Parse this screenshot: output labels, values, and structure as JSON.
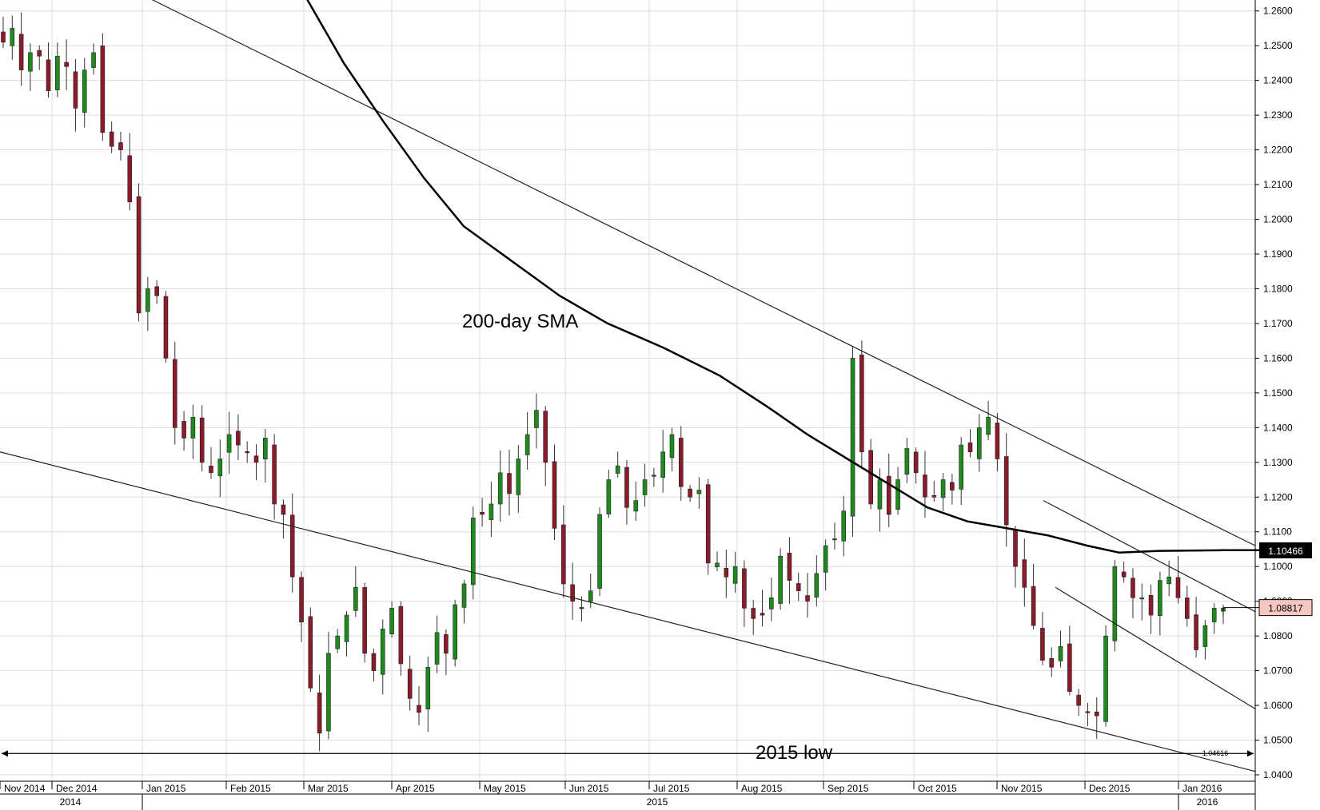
{
  "chart_data": {
    "type": "candlestick",
    "title": "",
    "xlabel": "",
    "ylabel": "",
    "ylim": [
      1.04,
      1.265
    ],
    "y_ticks": [
      "1.2600",
      "1.2500",
      "1.2400",
      "1.2300",
      "1.2200",
      "1.2100",
      "1.2000",
      "1.1900",
      "1.1800",
      "1.1700",
      "1.1600",
      "1.1500",
      "1.1400",
      "1.1300",
      "1.1200",
      "1.1100",
      "1.1000",
      "1.0900",
      "1.0800",
      "1.0700",
      "1.0600",
      "1.0500",
      "1.0400"
    ],
    "y_tick_values": [
      1.26,
      1.25,
      1.24,
      1.23,
      1.22,
      1.21,
      1.2,
      1.19,
      1.18,
      1.17,
      1.16,
      1.15,
      1.14,
      1.13,
      1.12,
      1.11,
      1.1,
      1.09,
      1.08,
      1.07,
      1.06,
      1.05,
      1.04
    ],
    "month_labels": [
      "Nov 2014",
      "Dec 2014",
      "Jan 2015",
      "Feb 2015",
      "Mar 2015",
      "Apr 2015",
      "May 2015",
      "Jun 2015",
      "Jul 2015",
      "Aug 2015",
      "Sep 2015",
      "Oct 2015",
      "Nov 2015",
      "Dec 2015",
      "Jan 2016"
    ],
    "year_labels": [
      "2014",
      "2015",
      "2016"
    ],
    "grid": true,
    "up_color": "#1e8a1e",
    "down_color": "#8b1a2a",
    "sma_label": "200-day SMA",
    "low_label": "2015 low",
    "low_value": "1.04616",
    "low_price": 1.04616,
    "sma_last": "1.10466",
    "sma_last_value": 1.10466,
    "last_price": "1.08817",
    "last_price_value": 1.08817,
    "last_price_color": "#f4c7c0",
    "close_series": [
      1.251,
      1.255,
      1.243,
      1.248,
      1.247,
      1.237,
      1.247,
      1.244,
      1.232,
      1.243,
      1.248,
      1.225,
      1.221,
      1.22,
      1.205,
      1.173,
      1.18,
      1.178,
      1.16,
      1.14,
      1.137,
      1.143,
      1.13,
      1.127,
      1.131,
      1.138,
      1.135,
      1.133,
      1.13,
      1.137,
      1.118,
      1.115,
      1.097,
      1.084,
      1.065,
      1.052,
      1.075,
      1.08,
      1.086,
      1.094,
      1.075,
      1.07,
      1.082,
      1.088,
      1.072,
      1.062,
      1.058,
      1.071,
      1.081,
      1.075,
      1.089,
      1.095,
      1.114,
      1.115,
      1.118,
      1.127,
      1.121,
      1.131,
      1.138,
      1.145,
      1.13,
      1.111,
      1.095,
      1.09,
      1.088,
      1.093,
      1.115,
      1.125,
      1.129,
      1.117,
      1.119,
      1.125,
      1.126,
      1.133,
      1.138,
      1.123,
      1.12,
      1.122,
      1.101,
      1.101,
      1.097,
      1.1,
      1.088,
      1.085,
      1.086,
      1.091,
      1.103,
      1.096,
      1.093,
      1.09,
      1.098,
      1.106,
      1.108,
      1.116,
      1.16,
      1.133,
      1.118,
      1.125,
      1.115,
      1.125,
      1.134,
      1.127,
      1.12,
      1.12,
      1.125,
      1.122,
      1.135,
      1.133,
      1.14,
      1.143,
      1.131,
      1.112,
      1.1,
      1.094,
      1.083,
      1.073,
      1.071,
      1.077,
      1.064,
      1.06,
      1.058,
      1.057,
      1.08,
      1.1,
      1.097,
      1.091,
      1.091,
      1.086,
      1.096,
      1.097,
      1.091,
      1.085,
      1.076,
      1.083,
      1.088,
      1.088
    ]
  }
}
